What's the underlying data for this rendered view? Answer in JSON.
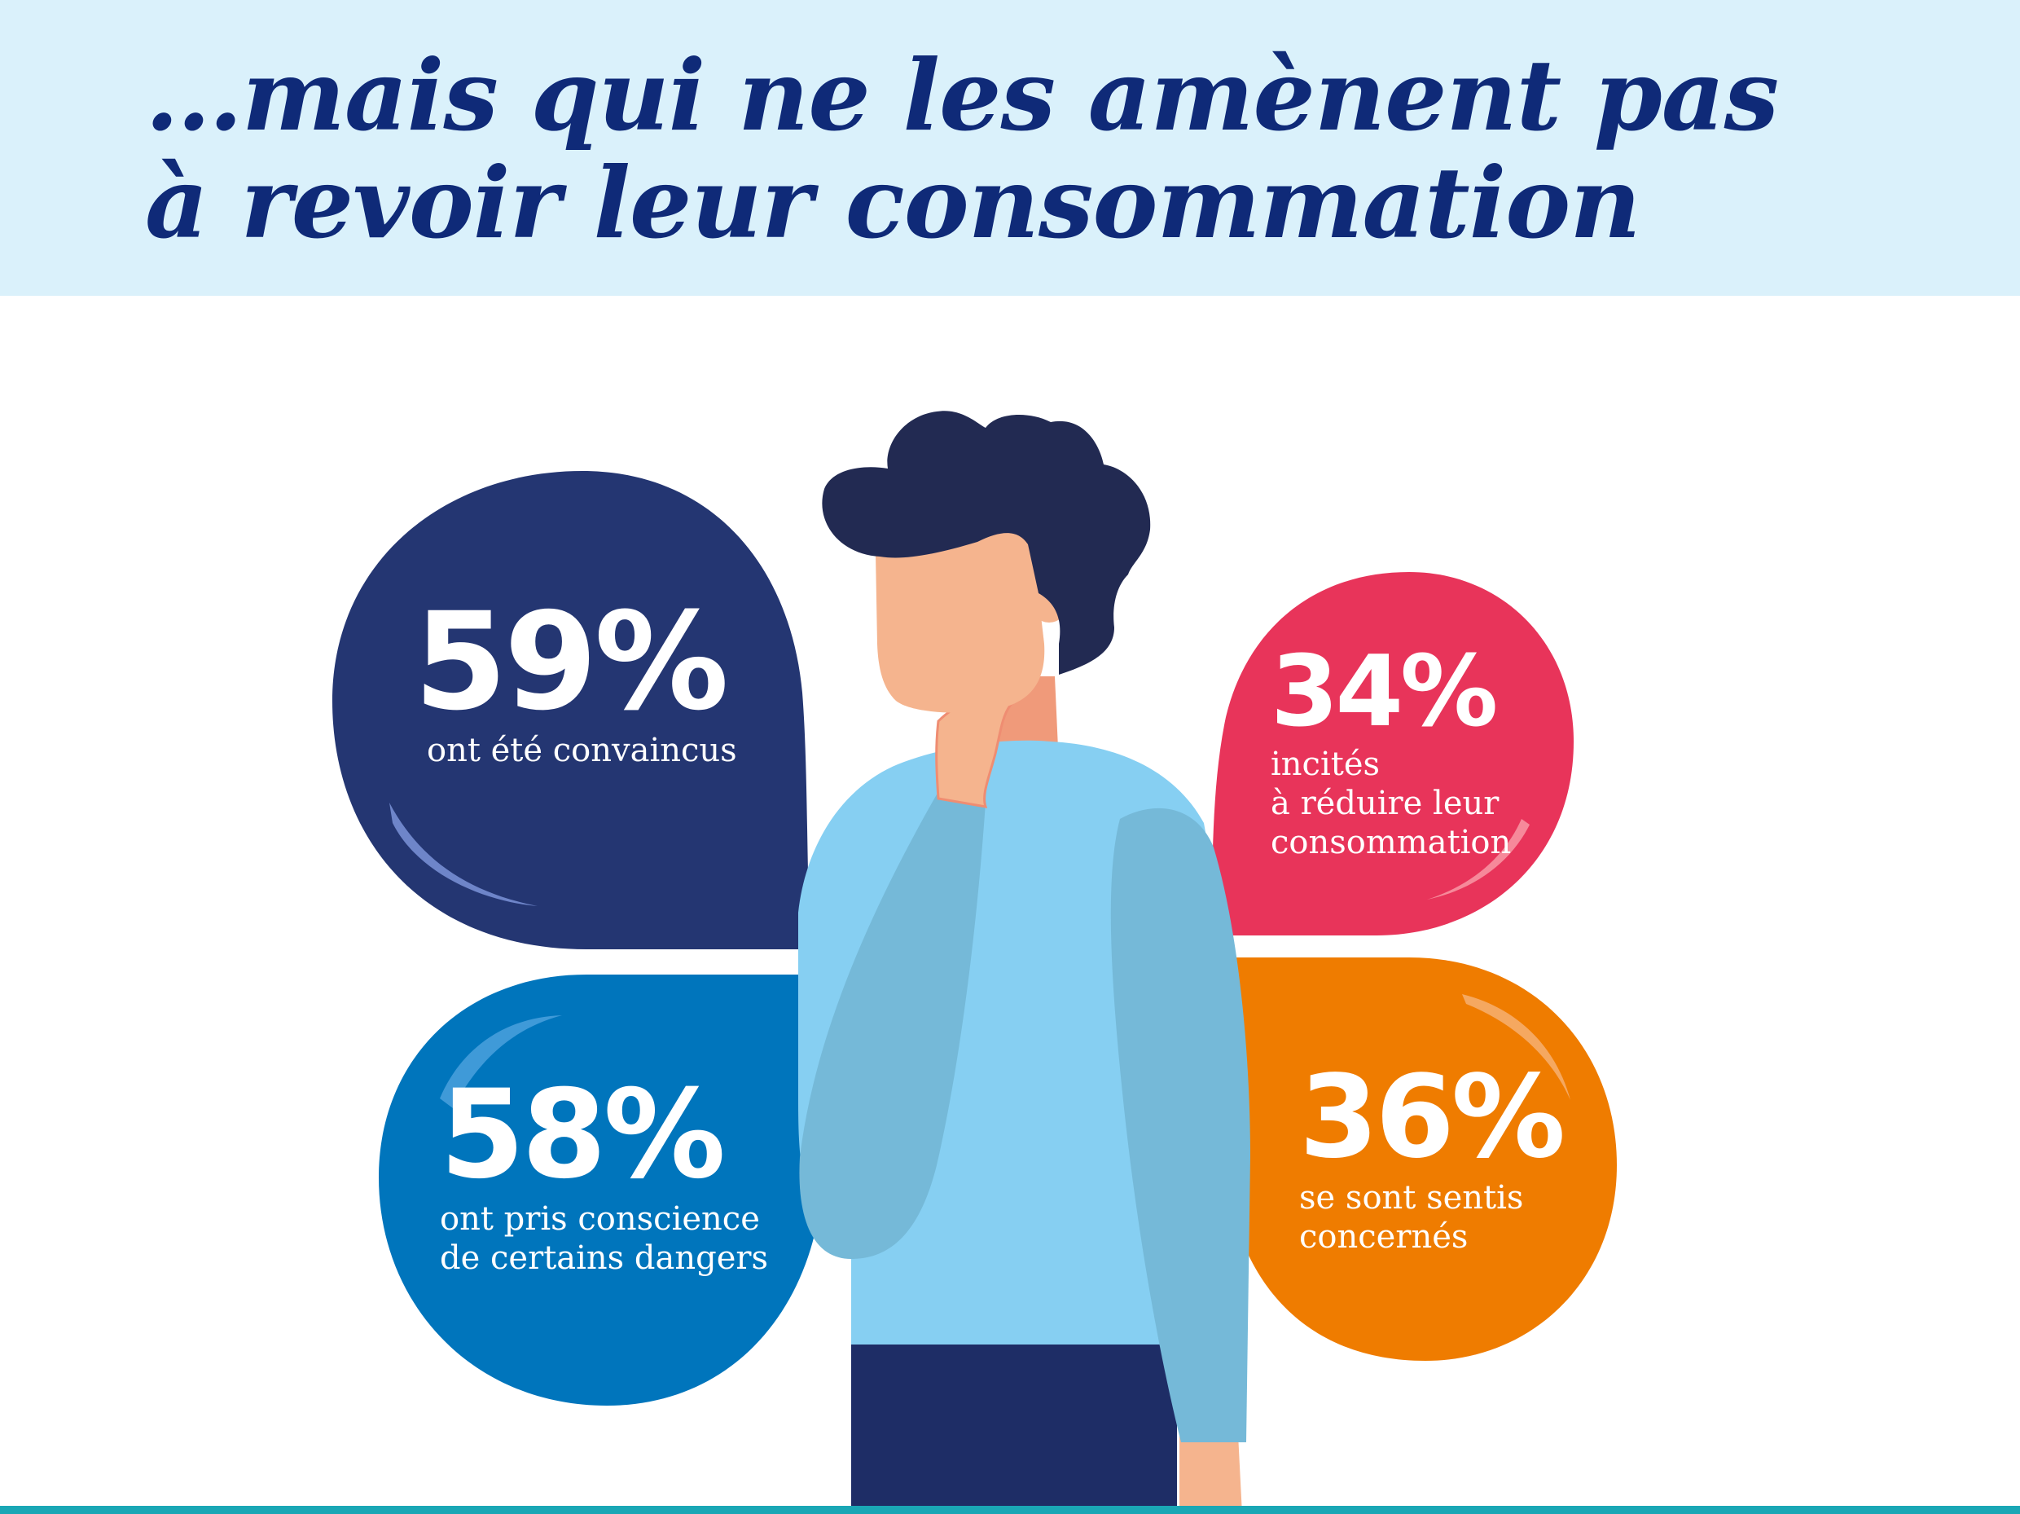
{
  "headline": {
    "line1": "…mais qui ne les amènent pas",
    "line2": "à revoir leur consommation"
  },
  "stats": [
    {
      "id": "convinced",
      "value": "59%",
      "label": "ont été convaincus",
      "color": "#243672"
    },
    {
      "id": "reduce",
      "value": "34%",
      "label": "incités\nà réduire leur\nconsommation",
      "color": "#e8345a"
    },
    {
      "id": "aware",
      "value": "58%",
      "label": "ont pris conscience\nde certains dangers",
      "color": "#0075bc"
    },
    {
      "id": "concerned",
      "value": "36%",
      "label": "se sont sentis\nconcernés",
      "color": "#ef7c00"
    }
  ],
  "colors": {
    "header_bg": "#daf1fb",
    "headline": "#0f2a78",
    "sweater": "#86cff2",
    "sleeve": "#75b9d8",
    "skin": "#f5b48e",
    "hair": "#222a52",
    "pants": "#1e2d66",
    "bottom_line": "#1aa7b5"
  }
}
